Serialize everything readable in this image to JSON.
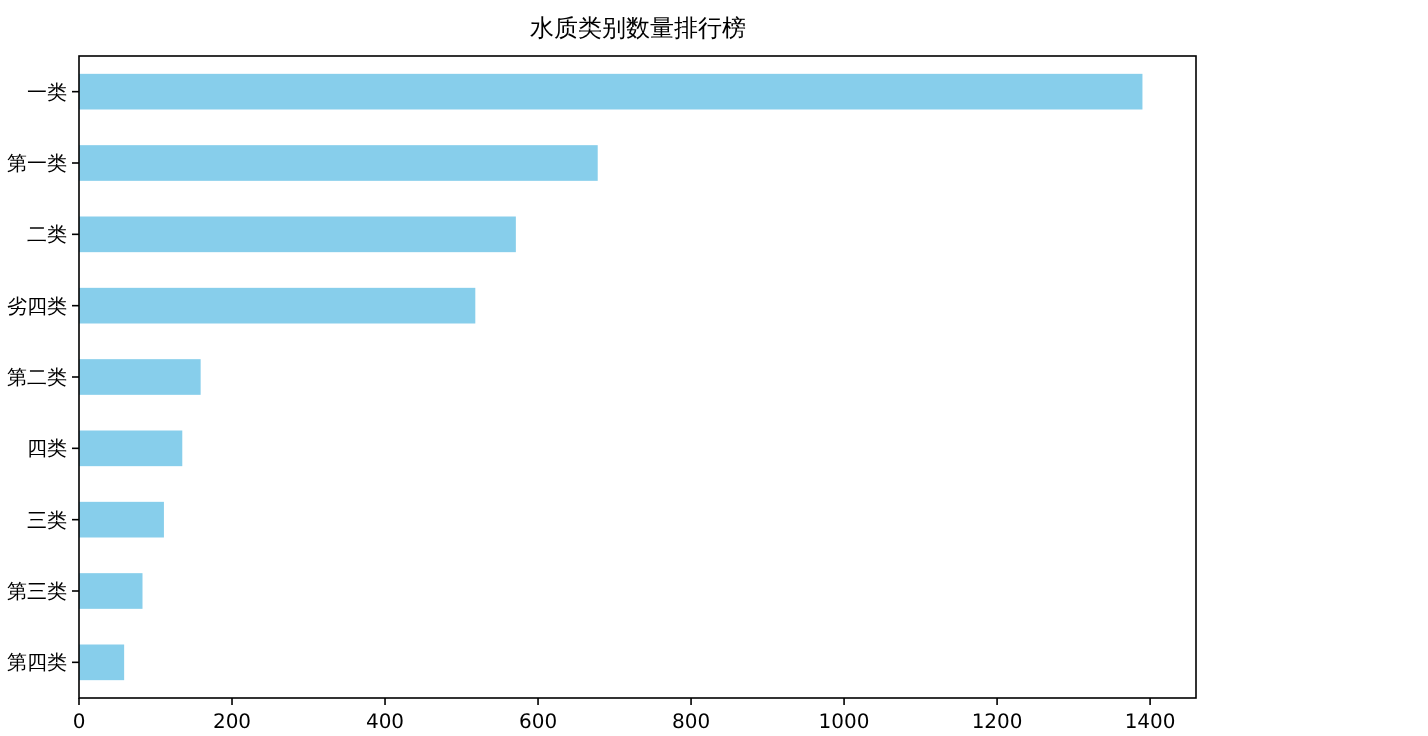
{
  "chart_data": {
    "type": "bar",
    "orientation": "horizontal",
    "title": "水质类别数量排行榜",
    "categories": [
      "一类",
      "第一类",
      "二类",
      "劣四类",
      "第二类",
      "四类",
      "三类",
      "第三类",
      "第四类"
    ],
    "values": [
      1390,
      678,
      571,
      518,
      159,
      135,
      111,
      83,
      59
    ],
    "color": "#87ceeb",
    "xlim": [
      0,
      1460
    ],
    "xticks": [
      0,
      200,
      400,
      600,
      800,
      1000,
      1200,
      1400
    ],
    "grid": false
  }
}
